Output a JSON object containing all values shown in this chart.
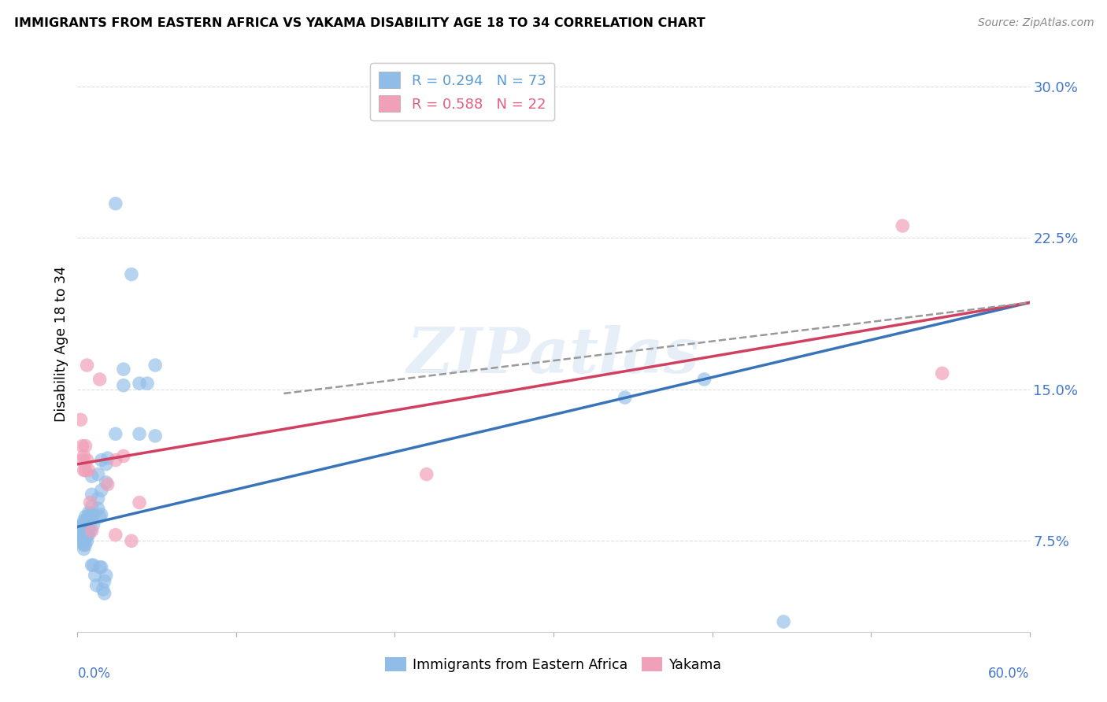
{
  "title": "IMMIGRANTS FROM EASTERN AFRICA VS YAKAMA DISABILITY AGE 18 TO 34 CORRELATION CHART",
  "source": "Source: ZipAtlas.com",
  "ylabel": "Disability Age 18 to 34",
  "ytick_labels": [
    "7.5%",
    "15.0%",
    "22.5%",
    "30.0%"
  ],
  "ytick_values": [
    0.075,
    0.15,
    0.225,
    0.3
  ],
  "xlim": [
    0.0,
    0.6
  ],
  "ylim": [
    0.03,
    0.315
  ],
  "legend_entries": [
    {
      "label": "R = 0.294   N = 73",
      "color": "#5b9bd5"
    },
    {
      "label": "R = 0.588   N = 22",
      "color": "#e06080"
    }
  ],
  "legend_bottom": [
    "Immigrants from Eastern Africa",
    "Yakama"
  ],
  "blue_color": "#90bce8",
  "pink_color": "#f0a0b8",
  "blue_scatter": [
    [
      0.001,
      0.082
    ],
    [
      0.002,
      0.082
    ],
    [
      0.002,
      0.079
    ],
    [
      0.002,
      0.077
    ],
    [
      0.003,
      0.083
    ],
    [
      0.003,
      0.08
    ],
    [
      0.003,
      0.078
    ],
    [
      0.003,
      0.076
    ],
    [
      0.003,
      0.074
    ],
    [
      0.004,
      0.085
    ],
    [
      0.004,
      0.082
    ],
    [
      0.004,
      0.079
    ],
    [
      0.004,
      0.077
    ],
    [
      0.004,
      0.075
    ],
    [
      0.004,
      0.073
    ],
    [
      0.004,
      0.071
    ],
    [
      0.005,
      0.087
    ],
    [
      0.005,
      0.083
    ],
    [
      0.005,
      0.08
    ],
    [
      0.005,
      0.078
    ],
    [
      0.005,
      0.076
    ],
    [
      0.005,
      0.073
    ],
    [
      0.006,
      0.086
    ],
    [
      0.006,
      0.083
    ],
    [
      0.006,
      0.08
    ],
    [
      0.006,
      0.078
    ],
    [
      0.006,
      0.075
    ],
    [
      0.007,
      0.089
    ],
    [
      0.007,
      0.085
    ],
    [
      0.007,
      0.081
    ],
    [
      0.007,
      0.078
    ],
    [
      0.008,
      0.088
    ],
    [
      0.008,
      0.084
    ],
    [
      0.008,
      0.08
    ],
    [
      0.009,
      0.107
    ],
    [
      0.009,
      0.098
    ],
    [
      0.009,
      0.092
    ],
    [
      0.009,
      0.086
    ],
    [
      0.009,
      0.063
    ],
    [
      0.01,
      0.088
    ],
    [
      0.01,
      0.083
    ],
    [
      0.01,
      0.063
    ],
    [
      0.011,
      0.058
    ],
    [
      0.012,
      0.053
    ],
    [
      0.013,
      0.108
    ],
    [
      0.013,
      0.096
    ],
    [
      0.013,
      0.091
    ],
    [
      0.014,
      0.087
    ],
    [
      0.014,
      0.062
    ],
    [
      0.015,
      0.115
    ],
    [
      0.015,
      0.1
    ],
    [
      0.015,
      0.088
    ],
    [
      0.015,
      0.062
    ],
    [
      0.016,
      0.051
    ],
    [
      0.017,
      0.055
    ],
    [
      0.017,
      0.049
    ],
    [
      0.018,
      0.113
    ],
    [
      0.018,
      0.104
    ],
    [
      0.018,
      0.058
    ],
    [
      0.019,
      0.116
    ],
    [
      0.024,
      0.128
    ],
    [
      0.024,
      0.242
    ],
    [
      0.029,
      0.16
    ],
    [
      0.029,
      0.152
    ],
    [
      0.034,
      0.207
    ],
    [
      0.039,
      0.153
    ],
    [
      0.039,
      0.128
    ],
    [
      0.044,
      0.153
    ],
    [
      0.049,
      0.162
    ],
    [
      0.049,
      0.127
    ],
    [
      0.345,
      0.146
    ],
    [
      0.395,
      0.155
    ],
    [
      0.445,
      0.035
    ]
  ],
  "pink_scatter": [
    [
      0.002,
      0.135
    ],
    [
      0.003,
      0.122
    ],
    [
      0.003,
      0.115
    ],
    [
      0.004,
      0.117
    ],
    [
      0.004,
      0.11
    ],
    [
      0.005,
      0.122
    ],
    [
      0.005,
      0.11
    ],
    [
      0.006,
      0.162
    ],
    [
      0.006,
      0.115
    ],
    [
      0.007,
      0.11
    ],
    [
      0.008,
      0.094
    ],
    [
      0.009,
      0.08
    ],
    [
      0.014,
      0.155
    ],
    [
      0.019,
      0.103
    ],
    [
      0.024,
      0.115
    ],
    [
      0.024,
      0.078
    ],
    [
      0.029,
      0.117
    ],
    [
      0.034,
      0.075
    ],
    [
      0.039,
      0.094
    ],
    [
      0.52,
      0.231
    ],
    [
      0.545,
      0.158
    ],
    [
      0.22,
      0.108
    ]
  ],
  "blue_line": {
    "x0": 0.0,
    "y0": 0.082,
    "x1": 0.6,
    "y1": 0.193
  },
  "pink_line": {
    "x0": 0.0,
    "y0": 0.113,
    "x1": 0.6,
    "y1": 0.193
  },
  "gray_dash_line": {
    "x0": 0.13,
    "y0": 0.148,
    "x1": 0.6,
    "y1": 0.193
  },
  "watermark": "ZIPatlas",
  "background_color": "#ffffff",
  "grid_color": "#dddddd"
}
